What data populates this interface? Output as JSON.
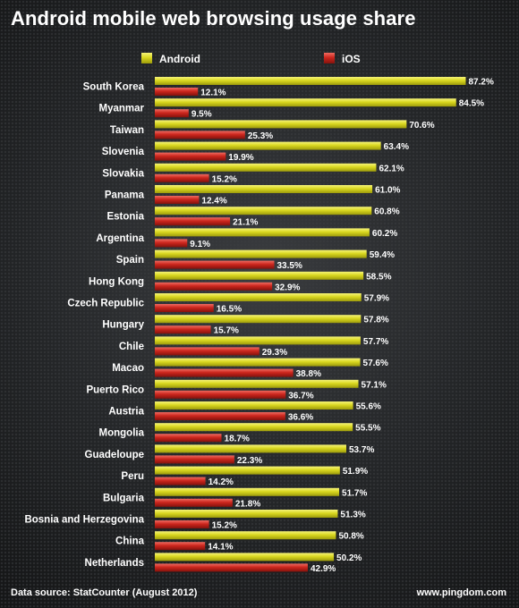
{
  "title": "Android mobile web browsing usage share",
  "footer": {
    "source": "Data source: StatCounter (August 2012)",
    "site": "www.pingdom.com"
  },
  "colors": {
    "android": "#d6d41a",
    "ios": "#c9231b",
    "background": "#1d1f21",
    "text": "#ffffff"
  },
  "chart_data": {
    "type": "bar",
    "orientation": "horizontal",
    "title": "Android mobile web browsing usage share",
    "xlabel": "",
    "ylabel": "",
    "xlim": [
      0,
      100
    ],
    "grid": false,
    "legend_position": "top",
    "value_suffix": "%",
    "categories": [
      "South Korea",
      "Myanmar",
      "Taiwan",
      "Slovenia",
      "Slovakia",
      "Panama",
      "Estonia",
      "Argentina",
      "Spain",
      "Hong Kong",
      "Czech Republic",
      "Hungary",
      "Chile",
      "Macao",
      "Puerto Rico",
      "Austria",
      "Mongolia",
      "Guadeloupe",
      "Peru",
      "Bulgaria",
      "Bosnia and Herzegovina",
      "China",
      "Netherlands"
    ],
    "series": [
      {
        "name": "Android",
        "values": [
          87.2,
          84.5,
          70.6,
          63.4,
          62.1,
          61.0,
          60.8,
          60.2,
          59.4,
          58.5,
          57.9,
          57.8,
          57.7,
          57.6,
          57.1,
          55.6,
          55.5,
          53.7,
          51.9,
          51.7,
          51.3,
          50.8,
          50.2
        ]
      },
      {
        "name": "iOS",
        "values": [
          12.1,
          9.5,
          25.3,
          19.9,
          15.2,
          12.4,
          21.1,
          9.1,
          33.5,
          32.9,
          16.5,
          15.7,
          29.3,
          38.8,
          36.7,
          36.6,
          18.7,
          22.3,
          14.2,
          21.8,
          15.2,
          14.1,
          42.9
        ]
      }
    ]
  }
}
